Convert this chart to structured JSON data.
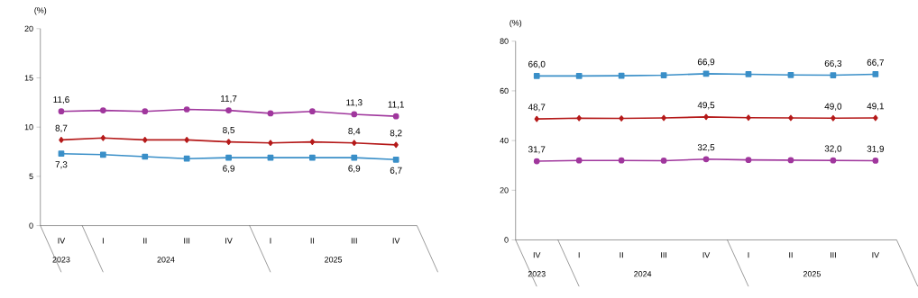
{
  "chart_data": [
    {
      "type": "line",
      "ylabel": "(%)",
      "categories": [
        "IV",
        "I",
        "II",
        "III",
        "IV",
        "I",
        "II",
        "III",
        "IV"
      ],
      "annotations": [
        "2023",
        "2024",
        "2025"
      ],
      "ylim": [
        0,
        20
      ],
      "yticks": [
        0,
        5,
        10,
        15,
        20
      ],
      "series": [
        {
          "color": "#a0379d",
          "marker": "circle",
          "values": [
            11.6,
            11.7,
            11.6,
            11.8,
            11.7,
            11.4,
            11.6,
            11.3,
            11.1
          ],
          "value_labels": [
            "11,6",
            null,
            null,
            null,
            "11,7",
            null,
            null,
            "11,3",
            "11,1"
          ]
        },
        {
          "color": "#b51a1a",
          "marker": "diamond",
          "values": [
            8.7,
            8.9,
            8.7,
            8.7,
            8.5,
            8.4,
            8.5,
            8.4,
            8.2
          ],
          "value_labels": [
            "8,7",
            null,
            null,
            null,
            "8,5",
            null,
            null,
            "8,4",
            "8,2"
          ]
        },
        {
          "color": "#3a8fc8",
          "marker": "square",
          "values": [
            7.3,
            7.2,
            7.0,
            6.8,
            6.9,
            6.9,
            6.9,
            6.9,
            6.7
          ],
          "value_labels": [
            "7,3",
            null,
            null,
            null,
            "6,9",
            null,
            null,
            "6,9",
            "6,7"
          ]
        }
      ]
    },
    {
      "type": "line",
      "ylabel": "(%)",
      "categories": [
        "IV",
        "I",
        "II",
        "III",
        "IV",
        "I",
        "II",
        "III",
        "IV"
      ],
      "annotations": [
        "2023",
        "2024",
        "2025"
      ],
      "ylim": [
        0,
        80
      ],
      "yticks": [
        0,
        20,
        40,
        60,
        80
      ],
      "series": [
        {
          "color": "#3a8fc8",
          "marker": "square",
          "values": [
            66.0,
            66.0,
            66.1,
            66.3,
            66.9,
            66.7,
            66.4,
            66.3,
            66.7
          ],
          "value_labels": [
            "66,0",
            null,
            null,
            null,
            "66,9",
            null,
            null,
            "66,3",
            "66,7"
          ]
        },
        {
          "color": "#b51a1a",
          "marker": "diamond",
          "values": [
            48.7,
            49.0,
            48.9,
            49.1,
            49.5,
            49.2,
            49.1,
            49.0,
            49.1
          ],
          "value_labels": [
            "48,7",
            null,
            null,
            null,
            "49,5",
            null,
            null,
            "49,0",
            "49,1"
          ]
        },
        {
          "color": "#a0379d",
          "marker": "circle",
          "values": [
            31.7,
            32.0,
            32.0,
            31.9,
            32.5,
            32.2,
            32.1,
            32.0,
            31.9
          ],
          "value_labels": [
            "31,7",
            null,
            null,
            null,
            "32,5",
            null,
            null,
            "32,0",
            "31,9"
          ]
        }
      ]
    }
  ]
}
